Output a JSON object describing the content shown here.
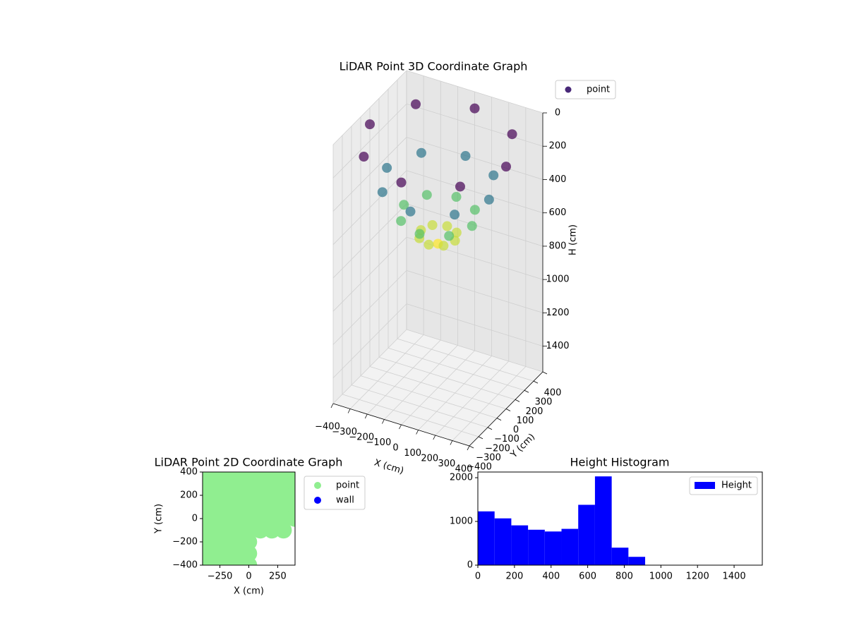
{
  "chart_data": [
    {
      "type": "scatter3d",
      "title": "LiDAR Point 3D Coordinate Graph",
      "xlabel": "X (cm)",
      "ylabel": "Y (cm)",
      "zlabel": "H (cm)",
      "xlim": [
        -400,
        400
      ],
      "ylim": [
        -400,
        400
      ],
      "zlim": [
        0,
        1554
      ],
      "z_inverted": true,
      "xticks": [
        {
          "value": -400,
          "label": "−400"
        },
        {
          "value": -300,
          "label": "−300"
        },
        {
          "value": -200,
          "label": "−200"
        },
        {
          "value": -100,
          "label": "−100"
        },
        0,
        100,
        200,
        300,
        400
      ],
      "yticks": [
        {
          "value": -400,
          "label": "−400"
        },
        {
          "value": -300,
          "label": "−300"
        },
        {
          "value": -200,
          "label": "−200"
        },
        {
          "value": -100,
          "label": "−100"
        },
        0,
        100,
        200,
        300,
        400
      ],
      "zticks": [
        0,
        200,
        400,
        600,
        800,
        1000,
        1200,
        1400
      ],
      "grid": true,
      "legend": "upper right",
      "colormap": "viridis",
      "series": [
        {
          "name": "point",
          "color": "#482878",
          "x": [
            400,
            283,
            0,
            -283,
            -400,
            -283,
            0,
            283,
            300,
            212,
            0,
            -212,
            -300,
            -212,
            0,
            212,
            200,
            141,
            0,
            -141,
            -200,
            -141,
            0,
            141,
            100,
            71,
            0,
            -71,
            -100,
            -71,
            0,
            71,
            0
          ],
          "y": [
            0,
            283,
            400,
            283,
            0,
            -283,
            -400,
            -283,
            0,
            212,
            300,
            212,
            0,
            -212,
            -300,
            -212,
            0,
            141,
            200,
            141,
            0,
            -141,
            -200,
            -141,
            0,
            71,
            100,
            71,
            0,
            -71,
            -100,
            -71,
            0
          ],
          "values": [
            100,
            100,
            100,
            100,
            100,
            100,
            100,
            100,
            330,
            330,
            330,
            330,
            330,
            330,
            330,
            330,
            520,
            520,
            520,
            520,
            520,
            520,
            520,
            520,
            640,
            640,
            640,
            640,
            640,
            640,
            640,
            640,
            690
          ]
        }
      ]
    },
    {
      "type": "scatter",
      "title": "LiDAR Point 2D Coordinate Graph",
      "xlabel": "X (cm)",
      "ylabel": "Y (cm)",
      "xlim": [
        -400,
        400
      ],
      "ylim": [
        -400,
        400
      ],
      "xticks": [
        {
          "value": -250,
          "label": "−250"
        },
        0,
        250
      ],
      "yticks": [
        {
          "value": -400,
          "label": "−400"
        },
        {
          "value": -200,
          "label": "−200"
        },
        0,
        200,
        400
      ],
      "legend": "outside right",
      "series": [
        {
          "name": "point",
          "color": "#90ee90",
          "x": [
            -400,
            -300,
            -200,
            -100,
            0,
            100,
            200,
            300,
            400,
            -400,
            -300,
            -200,
            -100,
            0,
            100,
            200,
            300,
            400,
            -400,
            -300,
            -200,
            -100,
            0,
            100,
            200,
            300,
            400,
            -400,
            -300,
            -200,
            -100,
            0,
            100,
            200,
            300,
            400,
            -400,
            -300,
            -200,
            -100,
            0,
            100,
            200,
            300,
            400,
            -400,
            -300,
            -200,
            -100,
            0,
            100,
            200,
            300,
            -400,
            -300,
            -200,
            -100,
            0,
            -400,
            -300,
            -200,
            -100,
            0,
            -400,
            -300,
            -200,
            -100,
            0
          ],
          "values": [
            400,
            400,
            400,
            400,
            400,
            400,
            400,
            400,
            400,
            300,
            300,
            300,
            300,
            300,
            300,
            300,
            300,
            300,
            200,
            200,
            200,
            200,
            200,
            200,
            200,
            200,
            200,
            100,
            100,
            100,
            100,
            100,
            100,
            100,
            100,
            100,
            0,
            0,
            0,
            0,
            0,
            0,
            0,
            0,
            0,
            -100,
            -100,
            -100,
            -100,
            -100,
            -100,
            -100,
            -100,
            -200,
            -200,
            -200,
            -200,
            -200,
            -300,
            -300,
            -300,
            -300,
            -300,
            -400,
            -400,
            -400,
            -400,
            -400
          ]
        },
        {
          "name": "wall",
          "color": "#0000ff",
          "x": [],
          "values": []
        }
      ]
    },
    {
      "type": "histogram",
      "title": "Height Histogram",
      "xlim": [
        0,
        1554
      ],
      "ylim": [
        0,
        2130
      ],
      "xticks": [
        0,
        200,
        400,
        600,
        800,
        1000,
        1200,
        1400
      ],
      "yticks": [
        0,
        1000,
        2000
      ],
      "legend": "upper right",
      "series": [
        {
          "name": "Height",
          "color": "#0000ff",
          "bins": [
            0,
            91.4,
            182.8,
            274.2,
            365.6,
            457,
            548.4,
            639.8,
            731.2,
            822.6,
            914,
            1005.4,
            1096.8,
            1188.2,
            1279.6,
            1371,
            1462.4,
            1553.8
          ],
          "values": [
            1230,
            1070,
            910,
            810,
            770,
            830,
            1380,
            2030,
            400,
            190,
            0,
            0,
            0,
            0,
            0,
            0,
            0
          ]
        }
      ]
    }
  ]
}
